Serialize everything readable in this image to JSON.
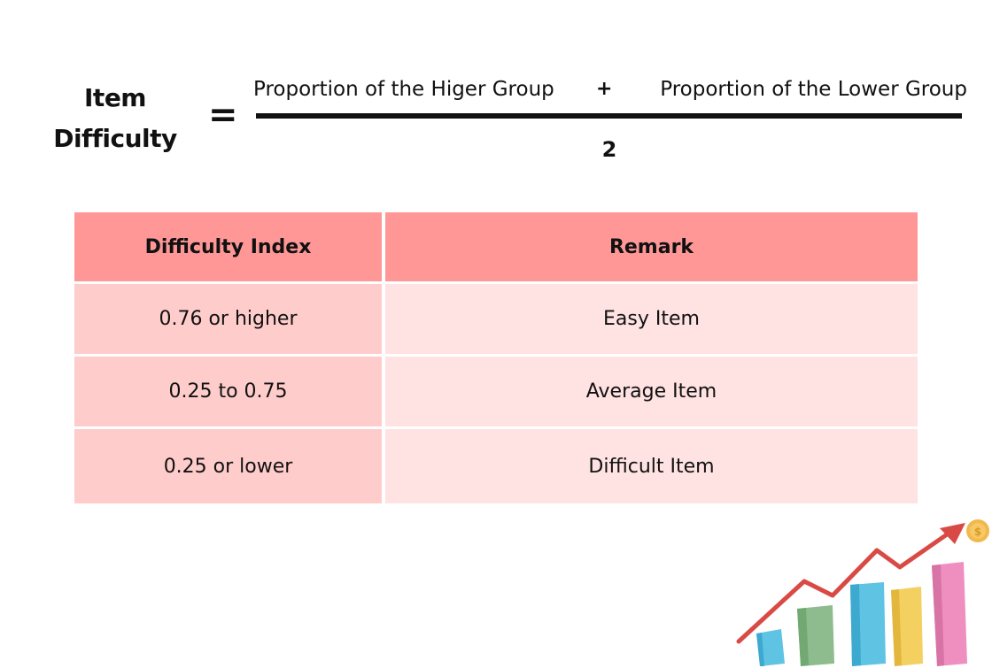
{
  "formula": {
    "lhs_line1": "Item",
    "lhs_line2": "Difficulty",
    "equals": "=",
    "numerator_term_a": "Proportion of the Higer Group",
    "plus": "+",
    "numerator_term_b": "Proportion of the Lower Group",
    "denominator": "2"
  },
  "table": {
    "headers": [
      "Difficulty Index",
      "Remark"
    ],
    "rows": [
      [
        "0.76 or higher",
        "Easy Item"
      ],
      [
        "0.25 to 0.75",
        "Average Item"
      ],
      [
        "0.25 or lower",
        "Difficult Item"
      ]
    ]
  },
  "colors": {
    "header_bg": "#ff9797",
    "col1_bg": "#ffcccc",
    "col2_bg": "#ffe2e2",
    "arrow": "#d94a45",
    "coin": "#f2b84b"
  },
  "illustration": {
    "icon": "growth-chart-icon"
  }
}
